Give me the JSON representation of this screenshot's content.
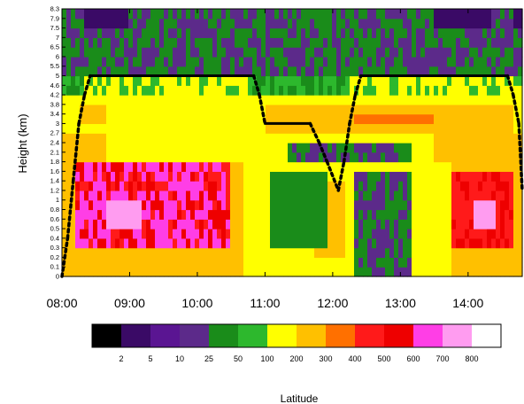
{
  "chart_data": {
    "type": "heatmap",
    "title": "",
    "xlabel": "Latitude",
    "ylabel": "Height (km)",
    "x_ticks": [
      "08:00",
      "09:00",
      "10:00",
      "11:00",
      "12:00",
      "13:00",
      "14:00"
    ],
    "x_range": [
      "08:00",
      "14:48"
    ],
    "y_ticks": [
      "0",
      "0.1",
      "0.2",
      "0.3",
      "0.4",
      "0.5",
      "0.6",
      "0.8",
      "1",
      "1.2",
      "1.4",
      "1.6",
      "1.8",
      "2.1",
      "2.4",
      "2.7",
      "3",
      "3.4",
      "3.8",
      "4.2",
      "4.6",
      "5",
      "5.5",
      "6",
      "6.5",
      "7",
      "7.5",
      "7.9",
      "8.3"
    ],
    "y_range": [
      0,
      8.3
    ],
    "colorbar": {
      "labels": [
        "2",
        "5",
        "10",
        "25",
        "50",
        "100",
        "200",
        "300",
        "400",
        "500",
        "600",
        "700",
        "800"
      ],
      "colors": [
        "#000000",
        "#3a0a66",
        "#5a1592",
        "#5c2a8a",
        "#1a8c1a",
        "#2db82d",
        "#ffff00",
        "#ffc000",
        "#ff7000",
        "#ff1a1a",
        "#ee0000",
        "#ff3ee6",
        "#ff9cf0",
        "#ffffff"
      ]
    },
    "field_levels": {
      "note_levels_by_band": "approximate class index per horizontal band (0=lowest class)"
    },
    "overlay_line": {
      "style": "black dotted / solid boundary",
      "points": [
        [
          "08:00",
          0
        ],
        [
          "08:05",
          0.4
        ],
        [
          "08:10",
          1.4
        ],
        [
          "08:15",
          3.0
        ],
        [
          "08:20",
          4.2
        ],
        [
          "08:25",
          5.0
        ],
        [
          "10:50",
          5.0
        ],
        [
          "10:55",
          4.2
        ],
        [
          "11:00",
          3.0
        ],
        [
          "11:40",
          3.0
        ],
        [
          "11:48",
          2.4
        ],
        [
          "11:55",
          1.8
        ],
        [
          "12:05",
          1.2
        ],
        [
          "12:10",
          1.8
        ],
        [
          "12:15",
          3.0
        ],
        [
          "12:20",
          4.2
        ],
        [
          "12:25",
          5.0
        ],
        [
          "14:35",
          5.0
        ],
        [
          "14:40",
          4.2
        ],
        [
          "14:45",
          3.0
        ],
        [
          "14:48",
          1.2
        ]
      ]
    }
  }
}
